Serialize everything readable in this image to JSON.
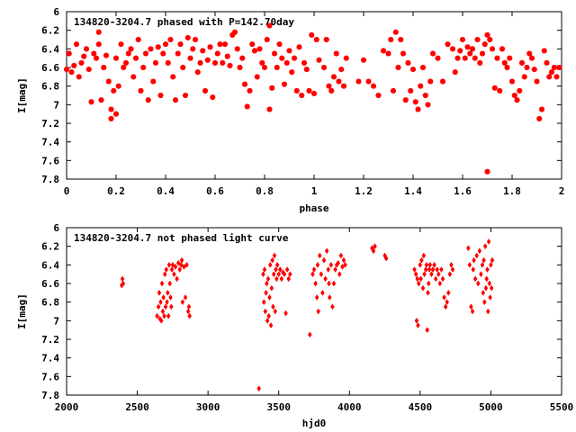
{
  "chart_data": [
    {
      "type": "scatter",
      "title": "134820-3204.7 phased with P=142.70day",
      "xlabel": "phase",
      "ylabel": "I[mag]",
      "xlim": [
        0,
        2
      ],
      "ylim": [
        6,
        7.8
      ],
      "y_inverted": true,
      "grid": false,
      "color": "#ff0000",
      "marker": "star",
      "xticks": [
        "0",
        "0.2",
        "0.4",
        "0.6",
        "0.8",
        "1",
        "1.2",
        "1.4",
        "1.6",
        "1.8",
        "2"
      ],
      "yticks": [
        "6",
        "6.2",
        "6.4",
        "6.6",
        "6.8",
        "7",
        "7.2",
        "7.4",
        "7.6",
        "7.8"
      ],
      "points": [
        [
          0.0,
          6.62
        ],
        [
          0.01,
          6.45
        ],
        [
          0.02,
          6.65
        ],
        [
          0.03,
          6.58
        ],
        [
          0.04,
          6.35
        ],
        [
          0.05,
          6.7
        ],
        [
          0.06,
          6.55
        ],
        [
          0.07,
          6.48
        ],
        [
          0.08,
          6.4
        ],
        [
          0.09,
          6.62
        ],
        [
          0.1,
          6.97
        ],
        [
          0.11,
          6.45
        ],
        [
          0.12,
          6.5
        ],
        [
          0.13,
          6.22
        ],
        [
          0.13,
          6.35
        ],
        [
          0.14,
          6.95
        ],
        [
          0.15,
          6.6
        ],
        [
          0.16,
          6.47
        ],
        [
          0.17,
          6.75
        ],
        [
          0.18,
          7.05
        ],
        [
          0.18,
          7.15
        ],
        [
          0.19,
          6.85
        ],
        [
          0.2,
          7.1
        ],
        [
          0.2,
          6.5
        ],
        [
          0.21,
          6.8
        ],
        [
          0.22,
          6.35
        ],
        [
          0.23,
          6.6
        ],
        [
          0.24,
          6.55
        ],
        [
          0.25,
          6.45
        ],
        [
          0.26,
          6.4
        ],
        [
          0.27,
          6.7
        ],
        [
          0.28,
          6.5
        ],
        [
          0.29,
          6.3
        ],
        [
          0.3,
          6.85
        ],
        [
          0.31,
          6.6
        ],
        [
          0.32,
          6.45
        ],
        [
          0.33,
          6.95
        ],
        [
          0.34,
          6.4
        ],
        [
          0.35,
          6.75
        ],
        [
          0.36,
          6.55
        ],
        [
          0.37,
          6.38
        ],
        [
          0.38,
          6.9
        ],
        [
          0.39,
          6.45
        ],
        [
          0.4,
          6.35
        ],
        [
          0.41,
          6.55
        ],
        [
          0.42,
          6.3
        ],
        [
          0.43,
          6.7
        ],
        [
          0.44,
          6.95
        ],
        [
          0.45,
          6.45
        ],
        [
          0.46,
          6.35
        ],
        [
          0.47,
          6.6
        ],
        [
          0.48,
          6.9
        ],
        [
          0.49,
          6.28
        ],
        [
          0.5,
          6.5
        ],
        [
          0.51,
          6.4
        ],
        [
          0.52,
          6.3
        ],
        [
          0.53,
          6.65
        ],
        [
          0.54,
          6.55
        ],
        [
          0.55,
          6.42
        ],
        [
          0.56,
          6.85
        ],
        [
          0.57,
          6.52
        ],
        [
          0.58,
          6.38
        ],
        [
          0.59,
          6.92
        ],
        [
          0.6,
          6.55
        ],
        [
          0.61,
          6.45
        ],
        [
          0.62,
          6.35
        ],
        [
          0.63,
          6.55
        ],
        [
          0.64,
          6.35
        ],
        [
          0.65,
          6.48
        ],
        [
          0.66,
          6.58
        ],
        [
          0.67,
          6.25
        ],
        [
          0.68,
          6.22
        ],
        [
          0.69,
          6.4
        ],
        [
          0.7,
          6.6
        ],
        [
          0.71,
          6.5
        ],
        [
          0.72,
          6.78
        ],
        [
          0.73,
          7.02
        ],
        [
          0.74,
          6.85
        ],
        [
          0.75,
          6.35
        ],
        [
          0.76,
          6.42
        ],
        [
          0.77,
          6.7
        ],
        [
          0.78,
          6.4
        ],
        [
          0.79,
          6.55
        ],
        [
          0.8,
          6.6
        ],
        [
          0.81,
          6.3
        ],
        [
          0.82,
          7.05
        ],
        [
          0.82,
          6.15
        ],
        [
          0.83,
          6.82
        ],
        [
          0.84,
          6.45
        ],
        [
          0.85,
          6.6
        ],
        [
          0.86,
          6.35
        ],
        [
          0.87,
          6.5
        ],
        [
          0.88,
          6.78
        ],
        [
          0.89,
          6.55
        ],
        [
          0.9,
          6.42
        ],
        [
          0.91,
          6.65
        ],
        [
          0.92,
          6.5
        ],
        [
          0.93,
          6.85
        ],
        [
          0.94,
          6.38
        ],
        [
          0.95,
          6.9
        ],
        [
          0.96,
          6.55
        ],
        [
          0.97,
          6.62
        ],
        [
          0.98,
          6.85
        ],
        [
          0.99,
          6.25
        ],
        [
          1.0,
          6.88
        ],
        [
          1.01,
          6.3
        ],
        [
          1.02,
          6.52
        ],
        [
          1.04,
          6.6
        ],
        [
          1.05,
          6.3
        ],
        [
          1.06,
          6.8
        ],
        [
          1.07,
          6.85
        ],
        [
          1.08,
          6.7
        ],
        [
          1.09,
          6.45
        ],
        [
          1.1,
          6.75
        ],
        [
          1.11,
          6.62
        ],
        [
          1.12,
          6.8
        ],
        [
          1.13,
          6.5
        ],
        [
          1.18,
          6.75
        ],
        [
          1.2,
          6.52
        ],
        [
          1.22,
          6.75
        ],
        [
          1.24,
          6.8
        ],
        [
          1.26,
          6.9
        ],
        [
          1.28,
          6.42
        ],
        [
          1.3,
          6.45
        ],
        [
          1.31,
          6.3
        ],
        [
          1.32,
          6.85
        ],
        [
          1.33,
          6.22
        ],
        [
          1.34,
          6.6
        ],
        [
          1.35,
          6.3
        ],
        [
          1.36,
          6.45
        ],
        [
          1.37,
          6.95
        ],
        [
          1.38,
          6.55
        ],
        [
          1.39,
          6.85
        ],
        [
          1.4,
          6.62
        ],
        [
          1.41,
          6.97
        ],
        [
          1.42,
          7.05
        ],
        [
          1.43,
          6.8
        ],
        [
          1.44,
          6.6
        ],
        [
          1.45,
          6.9
        ],
        [
          1.46,
          7.0
        ],
        [
          1.47,
          6.75
        ],
        [
          1.48,
          6.45
        ],
        [
          1.5,
          6.5
        ],
        [
          1.52,
          6.75
        ],
        [
          1.54,
          6.35
        ],
        [
          1.56,
          6.4
        ],
        [
          1.57,
          6.65
        ],
        [
          1.58,
          6.5
        ],
        [
          1.59,
          6.42
        ],
        [
          1.6,
          6.3
        ],
        [
          1.61,
          6.5
        ],
        [
          1.62,
          6.38
        ],
        [
          1.63,
          6.45
        ],
        [
          1.64,
          6.4
        ],
        [
          1.65,
          6.5
        ],
        [
          1.66,
          6.3
        ],
        [
          1.67,
          6.55
        ],
        [
          1.68,
          6.45
        ],
        [
          1.69,
          6.35
        ],
        [
          1.7,
          6.25
        ],
        [
          1.7,
          7.72
        ],
        [
          1.71,
          6.3
        ],
        [
          1.72,
          6.4
        ],
        [
          1.73,
          6.82
        ],
        [
          1.74,
          6.5
        ],
        [
          1.75,
          6.85
        ],
        [
          1.76,
          6.4
        ],
        [
          1.77,
          6.55
        ],
        [
          1.78,
          6.6
        ],
        [
          1.79,
          6.5
        ],
        [
          1.8,
          6.75
        ],
        [
          1.81,
          6.9
        ],
        [
          1.82,
          6.95
        ],
        [
          1.83,
          6.85
        ],
        [
          1.84,
          6.55
        ],
        [
          1.85,
          6.7
        ],
        [
          1.86,
          6.6
        ],
        [
          1.87,
          6.45
        ],
        [
          1.88,
          6.5
        ],
        [
          1.89,
          6.62
        ],
        [
          1.9,
          6.75
        ],
        [
          1.91,
          7.15
        ],
        [
          1.92,
          7.05
        ],
        [
          1.93,
          6.42
        ],
        [
          1.94,
          6.55
        ],
        [
          1.95,
          6.7
        ],
        [
          1.96,
          6.65
        ],
        [
          1.97,
          6.6
        ],
        [
          1.98,
          6.7
        ],
        [
          1.99,
          6.6
        ]
      ]
    },
    {
      "type": "scatter",
      "title": "134820-3204.7 not phased light curve",
      "xlabel": "hjd0",
      "ylabel": "I[mag]",
      "xlim": [
        2000,
        5500
      ],
      "ylim": [
        6,
        7.8
      ],
      "y_inverted": true,
      "grid": false,
      "color": "#ff0000",
      "marker": "diamond",
      "xticks": [
        "2000",
        "2500",
        "3000",
        "3500",
        "4000",
        "4500",
        "5000",
        "5500"
      ],
      "yticks": [
        "6",
        "6.2",
        "6.4",
        "6.6",
        "6.8",
        "7",
        "7.2",
        "7.4",
        "7.6",
        "7.8"
      ],
      "points": [
        [
          2390,
          6.62
        ],
        [
          2395,
          6.55
        ],
        [
          2400,
          6.6
        ],
        [
          2640,
          6.95
        ],
        [
          2650,
          6.85
        ],
        [
          2655,
          6.7
        ],
        [
          2660,
          6.98
        ],
        [
          2665,
          6.8
        ],
        [
          2670,
          7.0
        ],
        [
          2675,
          6.6
        ],
        [
          2680,
          6.9
        ],
        [
          2685,
          6.75
        ],
        [
          2690,
          6.95
        ],
        [
          2695,
          6.5
        ],
        [
          2700,
          6.85
        ],
        [
          2705,
          6.45
        ],
        [
          2710,
          6.8
        ],
        [
          2715,
          6.7
        ],
        [
          2720,
          6.95
        ],
        [
          2725,
          6.4
        ],
        [
          2730,
          6.6
        ],
        [
          2735,
          6.75
        ],
        [
          2740,
          6.85
        ],
        [
          2745,
          6.45
        ],
        [
          2750,
          6.4
        ],
        [
          2760,
          6.5
        ],
        [
          2770,
          6.42
        ],
        [
          2780,
          6.55
        ],
        [
          2790,
          6.38
        ],
        [
          2800,
          6.45
        ],
        [
          2810,
          6.4
        ],
        [
          2815,
          6.35
        ],
        [
          2820,
          6.8
        ],
        [
          2830,
          6.42
        ],
        [
          2840,
          6.75
        ],
        [
          2850,
          6.4
        ],
        [
          2860,
          6.9
        ],
        [
          2865,
          6.85
        ],
        [
          2870,
          6.95
        ],
        [
          3360,
          7.73
        ],
        [
          3390,
          6.5
        ],
        [
          3395,
          6.8
        ],
        [
          3400,
          6.45
        ],
        [
          3405,
          6.9
        ],
        [
          3410,
          6.7
        ],
        [
          3415,
          6.6
        ],
        [
          3420,
          7.0
        ],
        [
          3425,
          6.55
        ],
        [
          3430,
          6.95
        ],
        [
          3435,
          6.75
        ],
        [
          3440,
          6.4
        ],
        [
          3445,
          7.05
        ],
        [
          3450,
          6.65
        ],
        [
          3455,
          6.35
        ],
        [
          3460,
          6.85
        ],
        [
          3465,
          6.5
        ],
        [
          3470,
          6.3
        ],
        [
          3475,
          6.9
        ],
        [
          3480,
          6.45
        ],
        [
          3485,
          6.55
        ],
        [
          3490,
          6.4
        ],
        [
          3500,
          6.5
        ],
        [
          3510,
          6.45
        ],
        [
          3520,
          6.55
        ],
        [
          3530,
          6.48
        ],
        [
          3540,
          6.5
        ],
        [
          3550,
          6.92
        ],
        [
          3560,
          6.45
        ],
        [
          3570,
          6.55
        ],
        [
          3580,
          6.5
        ],
        [
          3720,
          7.15
        ],
        [
          3740,
          6.5
        ],
        [
          3750,
          6.45
        ],
        [
          3760,
          6.6
        ],
        [
          3770,
          6.75
        ],
        [
          3775,
          6.4
        ],
        [
          3780,
          6.9
        ],
        [
          3790,
          6.3
        ],
        [
          3800,
          6.5
        ],
        [
          3810,
          6.7
        ],
        [
          3820,
          6.35
        ],
        [
          3830,
          6.55
        ],
        [
          3840,
          6.25
        ],
        [
          3850,
          6.45
        ],
        [
          3855,
          6.6
        ],
        [
          3860,
          6.75
        ],
        [
          3870,
          6.4
        ],
        [
          3880,
          6.85
        ],
        [
          3890,
          6.6
        ],
        [
          3900,
          6.45
        ],
        [
          3910,
          6.4
        ],
        [
          3920,
          6.38
        ],
        [
          3930,
          6.5
        ],
        [
          3940,
          6.3
        ],
        [
          3950,
          6.42
        ],
        [
          3960,
          6.35
        ],
        [
          3970,
          6.4
        ],
        [
          4160,
          6.22
        ],
        [
          4170,
          6.25
        ],
        [
          4180,
          6.2
        ],
        [
          4250,
          6.3
        ],
        [
          4260,
          6.33
        ],
        [
          4460,
          6.45
        ],
        [
          4470,
          6.5
        ],
        [
          4475,
          7.0
        ],
        [
          4480,
          6.55
        ],
        [
          4485,
          7.05
        ],
        [
          4490,
          6.6
        ],
        [
          4500,
          6.4
        ],
        [
          4505,
          6.55
        ],
        [
          4510,
          6.35
        ],
        [
          4520,
          6.65
        ],
        [
          4525,
          6.3
        ],
        [
          4530,
          6.5
        ],
        [
          4540,
          6.45
        ],
        [
          4545,
          6.4
        ],
        [
          4550,
          7.1
        ],
        [
          4555,
          6.7
        ],
        [
          4560,
          6.6
        ],
        [
          4565,
          6.45
        ],
        [
          4570,
          6.4
        ],
        [
          4580,
          6.5
        ],
        [
          4590,
          6.45
        ],
        [
          4600,
          6.4
        ],
        [
          4610,
          6.55
        ],
        [
          4620,
          6.45
        ],
        [
          4630,
          6.5
        ],
        [
          4640,
          6.6
        ],
        [
          4650,
          6.45
        ],
        [
          4660,
          6.55
        ],
        [
          4670,
          6.75
        ],
        [
          4680,
          6.85
        ],
        [
          4690,
          6.8
        ],
        [
          4700,
          6.7
        ],
        [
          4710,
          6.5
        ],
        [
          4720,
          6.4
        ],
        [
          4730,
          6.45
        ],
        [
          4840,
          6.22
        ],
        [
          4850,
          6.4
        ],
        [
          4860,
          6.85
        ],
        [
          4870,
          6.9
        ],
        [
          4875,
          6.45
        ],
        [
          4880,
          6.35
        ],
        [
          4890,
          6.55
        ],
        [
          4900,
          6.3
        ],
        [
          4910,
          6.6
        ],
        [
          4920,
          6.25
        ],
        [
          4930,
          6.5
        ],
        [
          4940,
          6.4
        ],
        [
          4945,
          6.7
        ],
        [
          4950,
          6.35
        ],
        [
          4955,
          6.8
        ],
        [
          4960,
          6.2
        ],
        [
          4965,
          6.65
        ],
        [
          4970,
          6.55
        ],
        [
          4975,
          6.45
        ],
        [
          4980,
          6.9
        ],
        [
          4985,
          6.15
        ],
        [
          4990,
          6.6
        ],
        [
          4995,
          6.75
        ],
        [
          5000,
          6.4
        ],
        [
          5005,
          6.65
        ],
        [
          5010,
          6.35
        ]
      ]
    }
  ]
}
